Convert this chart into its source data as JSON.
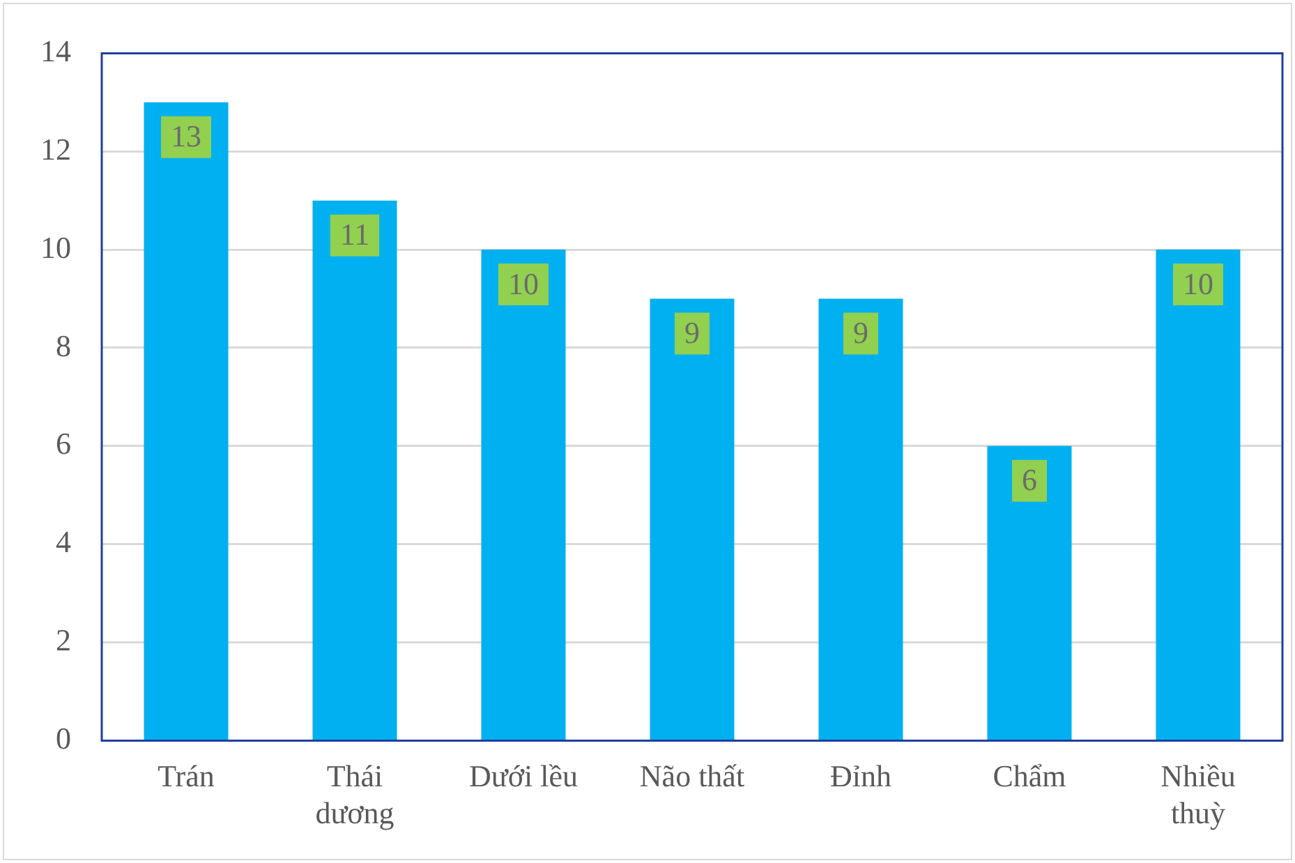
{
  "chart_data": {
    "type": "bar",
    "categories": [
      "Trán",
      "Thái dương",
      "Dưới lều",
      "Não thất",
      "Đỉnh",
      "Chẩm",
      "Nhiều thuỳ"
    ],
    "values": [
      13,
      11,
      10,
      9,
      9,
      6,
      10
    ],
    "color": "#00b0f0",
    "ylim": [
      0,
      14
    ],
    "yticks": [
      0,
      2,
      4,
      6,
      8,
      10,
      12,
      14
    ],
    "grid": "y",
    "legend": false,
    "data_labels": true
  }
}
